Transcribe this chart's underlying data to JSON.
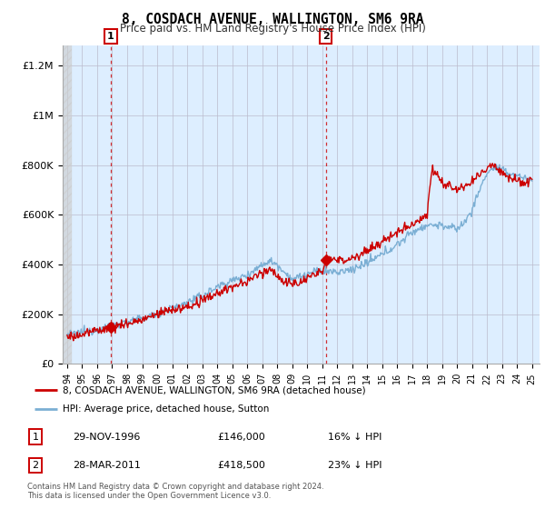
{
  "title": "8, COSDACH AVENUE, WALLINGTON, SM6 9RA",
  "subtitle": "Price paid vs. HM Land Registry's House Price Index (HPI)",
  "ylabel_ticks": [
    "£0",
    "£200K",
    "£400K",
    "£600K",
    "£800K",
    "£1M",
    "£1.2M"
  ],
  "ytick_values": [
    0,
    200000,
    400000,
    600000,
    800000,
    1000000,
    1200000
  ],
  "ylim": [
    0,
    1280000
  ],
  "xlim_start": 1993.7,
  "xlim_end": 2025.5,
  "hatch_end": 1994.3,
  "sale1_date": 1996.91,
  "sale1_price": 146000,
  "sale1_label": "1",
  "sale2_date": 2011.24,
  "sale2_price": 418500,
  "sale2_label": "2",
  "red_line_color": "#cc0000",
  "blue_line_color": "#7bafd4",
  "plot_bg_color": "#ddeeff",
  "hatch_color": "#cccccc",
  "grid_color": "#bbbbcc",
  "annotation_color": "#cc0000",
  "bg_color": "#ffffff",
  "legend_entries": [
    "8, COSDACH AVENUE, WALLINGTON, SM6 9RA (detached house)",
    "HPI: Average price, detached house, Sutton"
  ],
  "annotation1_date": "29-NOV-1996",
  "annotation1_price": "£146,000",
  "annotation1_hpi": "16% ↓ HPI",
  "annotation2_date": "28-MAR-2011",
  "annotation2_price": "£418,500",
  "annotation2_hpi": "23% ↓ HPI",
  "footer": "Contains HM Land Registry data © Crown copyright and database right 2024.\nThis data is licensed under the Open Government Licence v3.0.",
  "xtick_labels": [
    "94",
    "95",
    "96",
    "97",
    "98",
    "99",
    "00",
    "01",
    "02",
    "03",
    "04",
    "05",
    "06",
    "07",
    "08",
    "09",
    "10",
    "11",
    "12",
    "13",
    "14",
    "15",
    "16",
    "17",
    "18",
    "19",
    "20",
    "21",
    "22",
    "23",
    "24",
    "25"
  ],
  "xtick_values": [
    1994,
    1995,
    1996,
    1997,
    1998,
    1999,
    2000,
    2001,
    2002,
    2003,
    2004,
    2005,
    2006,
    2007,
    2008,
    2009,
    2010,
    2011,
    2012,
    2013,
    2014,
    2015,
    2016,
    2017,
    2018,
    2019,
    2020,
    2021,
    2022,
    2023,
    2024,
    2025
  ]
}
